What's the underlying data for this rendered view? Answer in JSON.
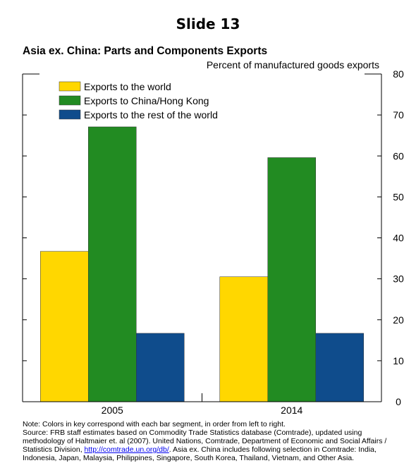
{
  "slide": {
    "title": "Slide 13"
  },
  "chart_data": {
    "type": "bar",
    "title": "Asia ex. China: Parts and Components Exports",
    "subtitle": "Percent of manufactured goods exports",
    "categories": [
      "2005",
      "2014"
    ],
    "series": [
      {
        "name": "Exports to the world",
        "color": "#FFD700",
        "values": [
          36.7,
          30.5
        ]
      },
      {
        "name": "Exports to China/Hong Kong",
        "color": "#228B22",
        "values": [
          67.1,
          59.6
        ]
      },
      {
        "name": "Exports to the rest of the world",
        "color": "#0F4C8C",
        "values": [
          16.7,
          16.7
        ]
      }
    ],
    "ylim": [
      0,
      80
    ],
    "yticks": [
      0,
      10,
      20,
      30,
      40,
      50,
      60,
      70,
      80
    ],
    "y_axis_side": "right",
    "grid": false,
    "legend_position": "top-left"
  },
  "footnote": {
    "note": "Note: Colors in key correspond with each bar segment, in order from left to right.",
    "source_before_link": "Source: FRB staff estimates based on Commodity Trade Statistics database (Comtrade), updated using methodology of Haltmaier et. al (2007). United Nations, Comtrade, Department of Economic and Social Affairs / Statistics Division, ",
    "link": "http://comtrade.un.org/db/",
    "source_after_link": ". Asia ex. China includes following selection in Comtrade: India, Indonesia, Japan, Malaysia, Philippines, Singapore, South Korea, Thailand, Vietnam, and Other Asia."
  }
}
